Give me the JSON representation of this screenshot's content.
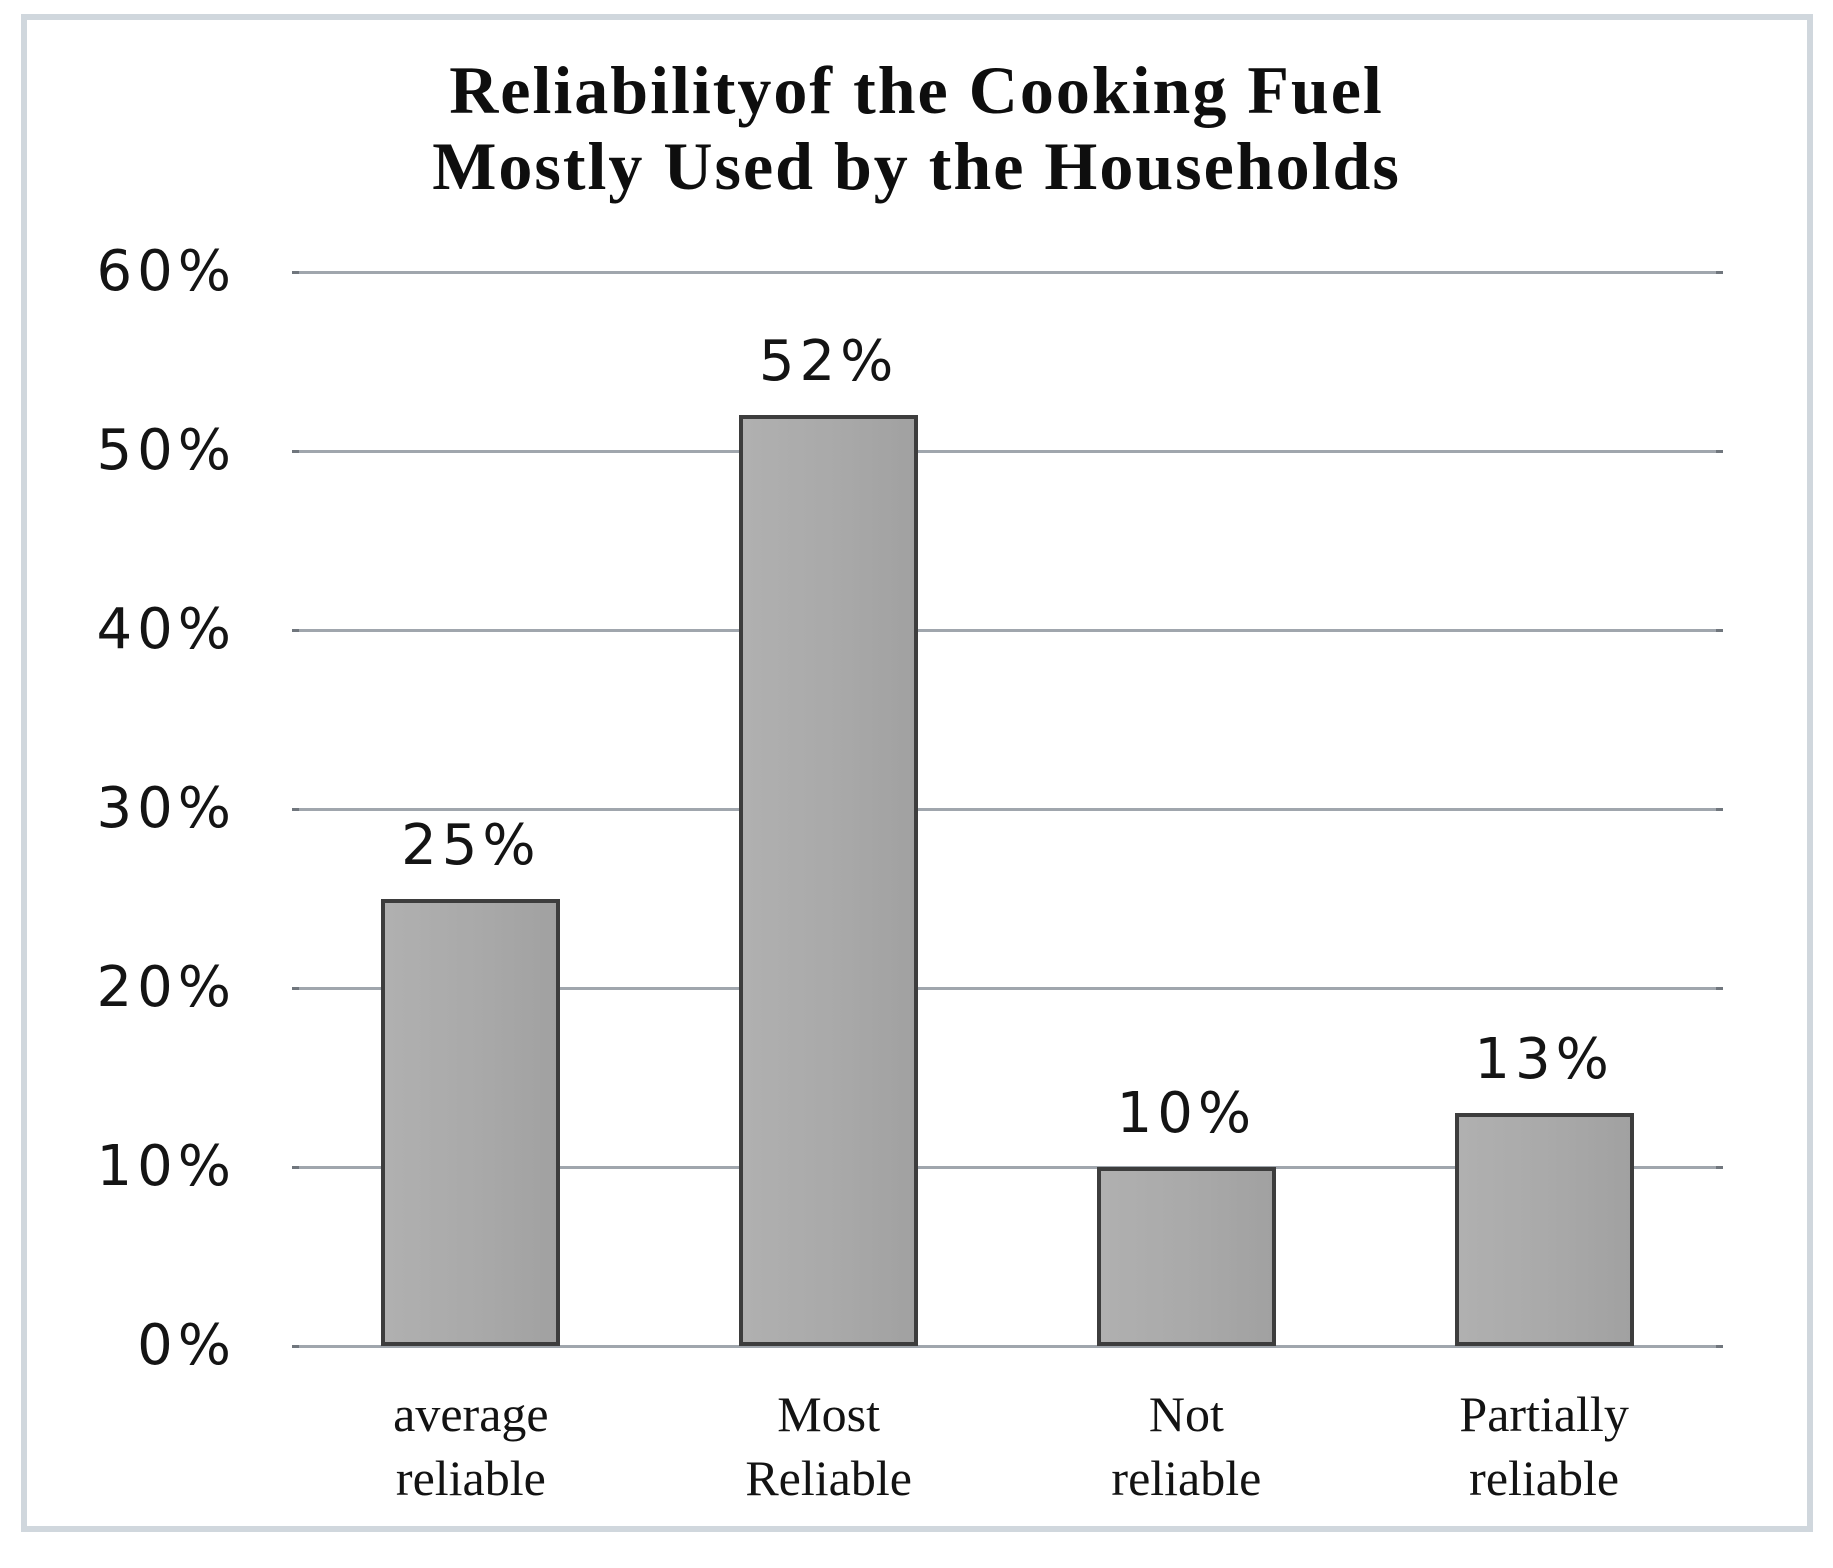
{
  "chart_data": {
    "type": "bar",
    "title": "Reliabilityof the Cooking Fuel Mostly Used by the Households",
    "title_lines": [
      "Reliabilityof the Cooking Fuel",
      "Mostly Used by the Households"
    ],
    "categories": [
      "average reliable",
      "Most Reliable",
      "Not reliable",
      "Partially reliable"
    ],
    "categories_lines": [
      [
        "average",
        "reliable"
      ],
      [
        "Most",
        "Reliable"
      ],
      [
        "Not",
        "reliable"
      ],
      [
        "Partially",
        "reliable"
      ]
    ],
    "values": [
      25,
      52,
      10,
      13
    ],
    "value_labels": [
      "25%",
      "52%",
      "10%",
      "13%"
    ],
    "xlabel": "",
    "ylabel": "",
    "ylim": [
      0,
      60
    ],
    "yticks": [
      0,
      10,
      20,
      30,
      40,
      50,
      60
    ],
    "ytick_labels": [
      "0%",
      "10%",
      "20%",
      "30%",
      "40%",
      "50%",
      "60%"
    ],
    "grid": "horizontal",
    "legend": "none",
    "colors": {
      "bar_fill": "#a9a9a9",
      "bar_border": "#3d3d3d",
      "gridline": "#a0a6ad",
      "text": "#141414",
      "frame_border": "#d0d7dd",
      "background": "#ffffff"
    }
  }
}
